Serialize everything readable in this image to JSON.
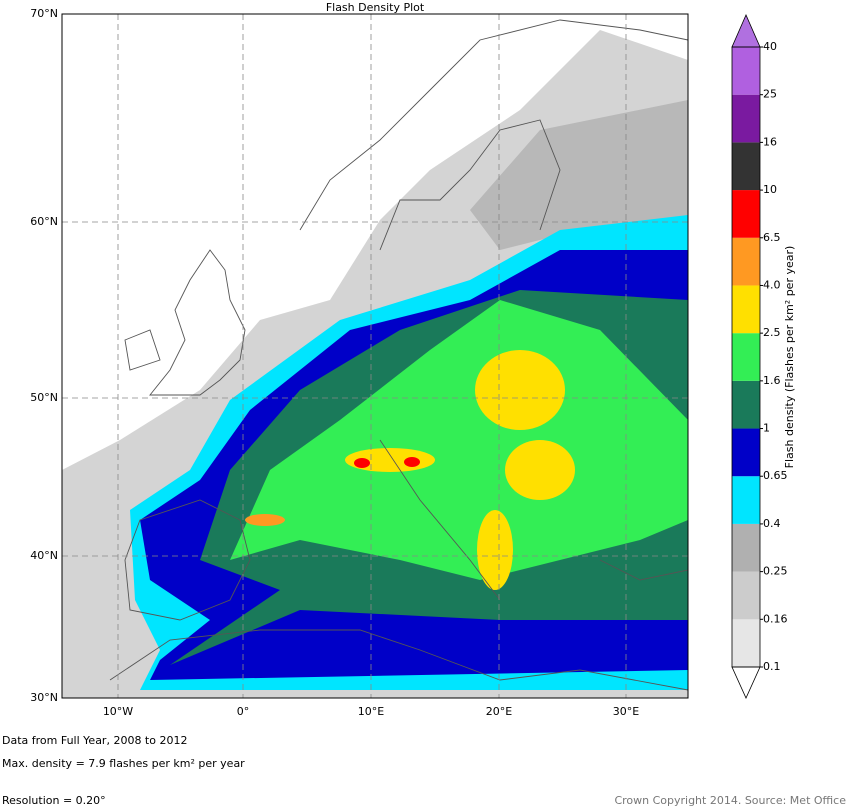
{
  "map": {
    "title": "Flash Density Plot",
    "lat_labels": [
      "70°N",
      "60°N",
      "50°N",
      "40°N",
      "30°N"
    ],
    "lon_labels": [
      "10°W",
      "0°",
      "10°E",
      "20°E",
      "30°E"
    ]
  },
  "colorbar": {
    "label": "Flash density (Flashes per km² per year)",
    "levels": [
      0.1,
      0.16,
      0.25,
      0.4,
      0.65,
      1,
      1.6,
      2.5,
      {
        "value": 4,
        "label": "4.0"
      },
      6.5,
      10,
      16,
      25,
      40
    ],
    "colors": [
      "#e6e6e6",
      "#cccccc",
      "#b0b0b0",
      "#00e5ff",
      "#0000c8",
      "#1a7a5a",
      "#33ee55",
      "#ffe000",
      "#ff9922",
      "#ff0000",
      "#333333",
      "#7a1aa0",
      "#b060e0"
    ],
    "extend_max_color": "#b070e0",
    "extend_min_color": "#ffffff"
  },
  "footer": [
    "Data from Full Year, 2008 to 2012",
    "Max. density = 7.9 flashes per km² per year",
    "Resolution = 0.20°"
  ],
  "credit": "Crown Copyright 2014. Source: Met Office"
}
